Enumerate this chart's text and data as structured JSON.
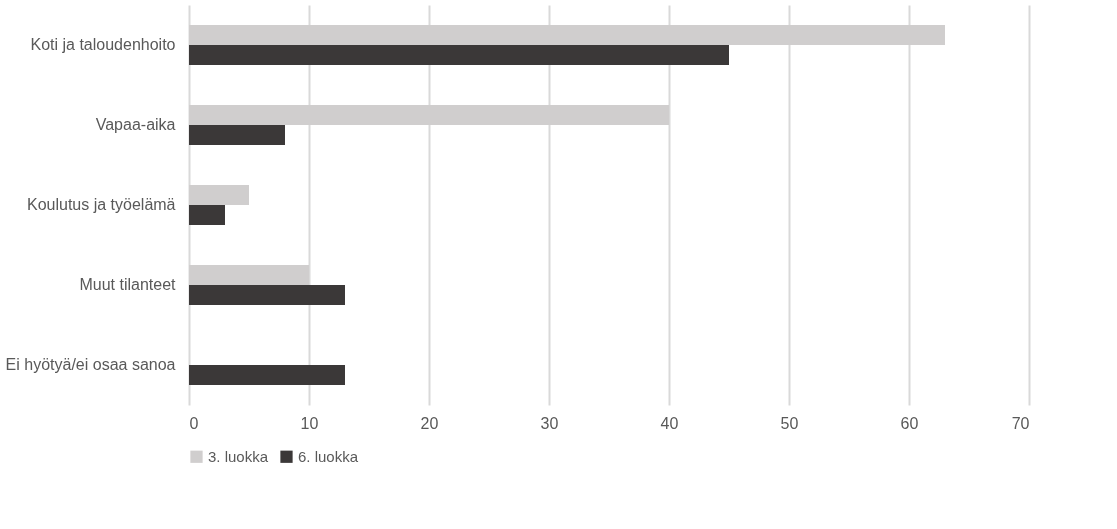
{
  "chart_data": {
    "type": "bar",
    "orientation": "horizontal",
    "categories": [
      "Koti ja taloudenhoito",
      "Vapaa-aika",
      "Koulutus ja työelämä",
      "Muut tilanteet",
      "Ei hyötyä/ei osaa sanoa"
    ],
    "series": [
      {
        "name": "3. luokka",
        "color": "#d0cece",
        "values": [
          63,
          40,
          5,
          10,
          0
        ]
      },
      {
        "name": "6. luokka",
        "color": "#3b3838",
        "values": [
          45,
          8,
          3,
          13,
          13
        ]
      }
    ],
    "xlim": [
      0,
      70
    ],
    "xticks": [
      0,
      10,
      20,
      30,
      40,
      50,
      60,
      70
    ],
    "grid": "x",
    "legend": "bottom"
  }
}
